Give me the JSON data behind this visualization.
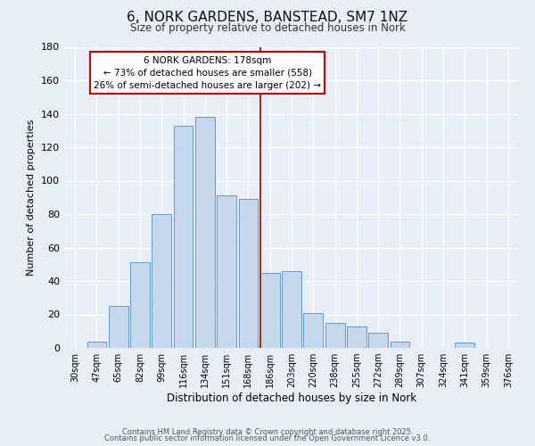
{
  "title": "6, NORK GARDENS, BANSTEAD, SM7 1NZ",
  "subtitle": "Size of property relative to detached houses in Nork",
  "xlabel": "Distribution of detached houses by size in Nork",
  "ylabel": "Number of detached properties",
  "categories": [
    "30sqm",
    "47sqm",
    "65sqm",
    "82sqm",
    "99sqm",
    "116sqm",
    "134sqm",
    "151sqm",
    "168sqm",
    "186sqm",
    "203sqm",
    "220sqm",
    "238sqm",
    "255sqm",
    "272sqm",
    "289sqm",
    "307sqm",
    "324sqm",
    "341sqm",
    "359sqm",
    "376sqm"
  ],
  "values": [
    0,
    4,
    25,
    51,
    80,
    133,
    138,
    91,
    89,
    45,
    46,
    21,
    15,
    13,
    9,
    4,
    0,
    0,
    3,
    0,
    0
  ],
  "bar_color": "#c5d8ed",
  "bar_edge_color": "#6699cc",
  "background_color": "#e8eef8",
  "grid_color": "#ffffff",
  "vline_color": "#993333",
  "annotation_title": "6 NORK GARDENS: 178sqm",
  "annotation_line1": "← 73% of detached houses are smaller (558)",
  "annotation_line2": "26% of semi-detached houses are larger (202) →",
  "annotation_box_color": "#ffffff",
  "annotation_box_edge_color": "#cc0000",
  "ylim": [
    0,
    180
  ],
  "yticks": [
    0,
    20,
    40,
    60,
    80,
    100,
    120,
    140,
    160,
    180
  ],
  "footer1": "Contains HM Land Registry data © Crown copyright and database right 2025.",
  "footer2": "Contains public sector information licensed under the Open Government Licence v3.0."
}
